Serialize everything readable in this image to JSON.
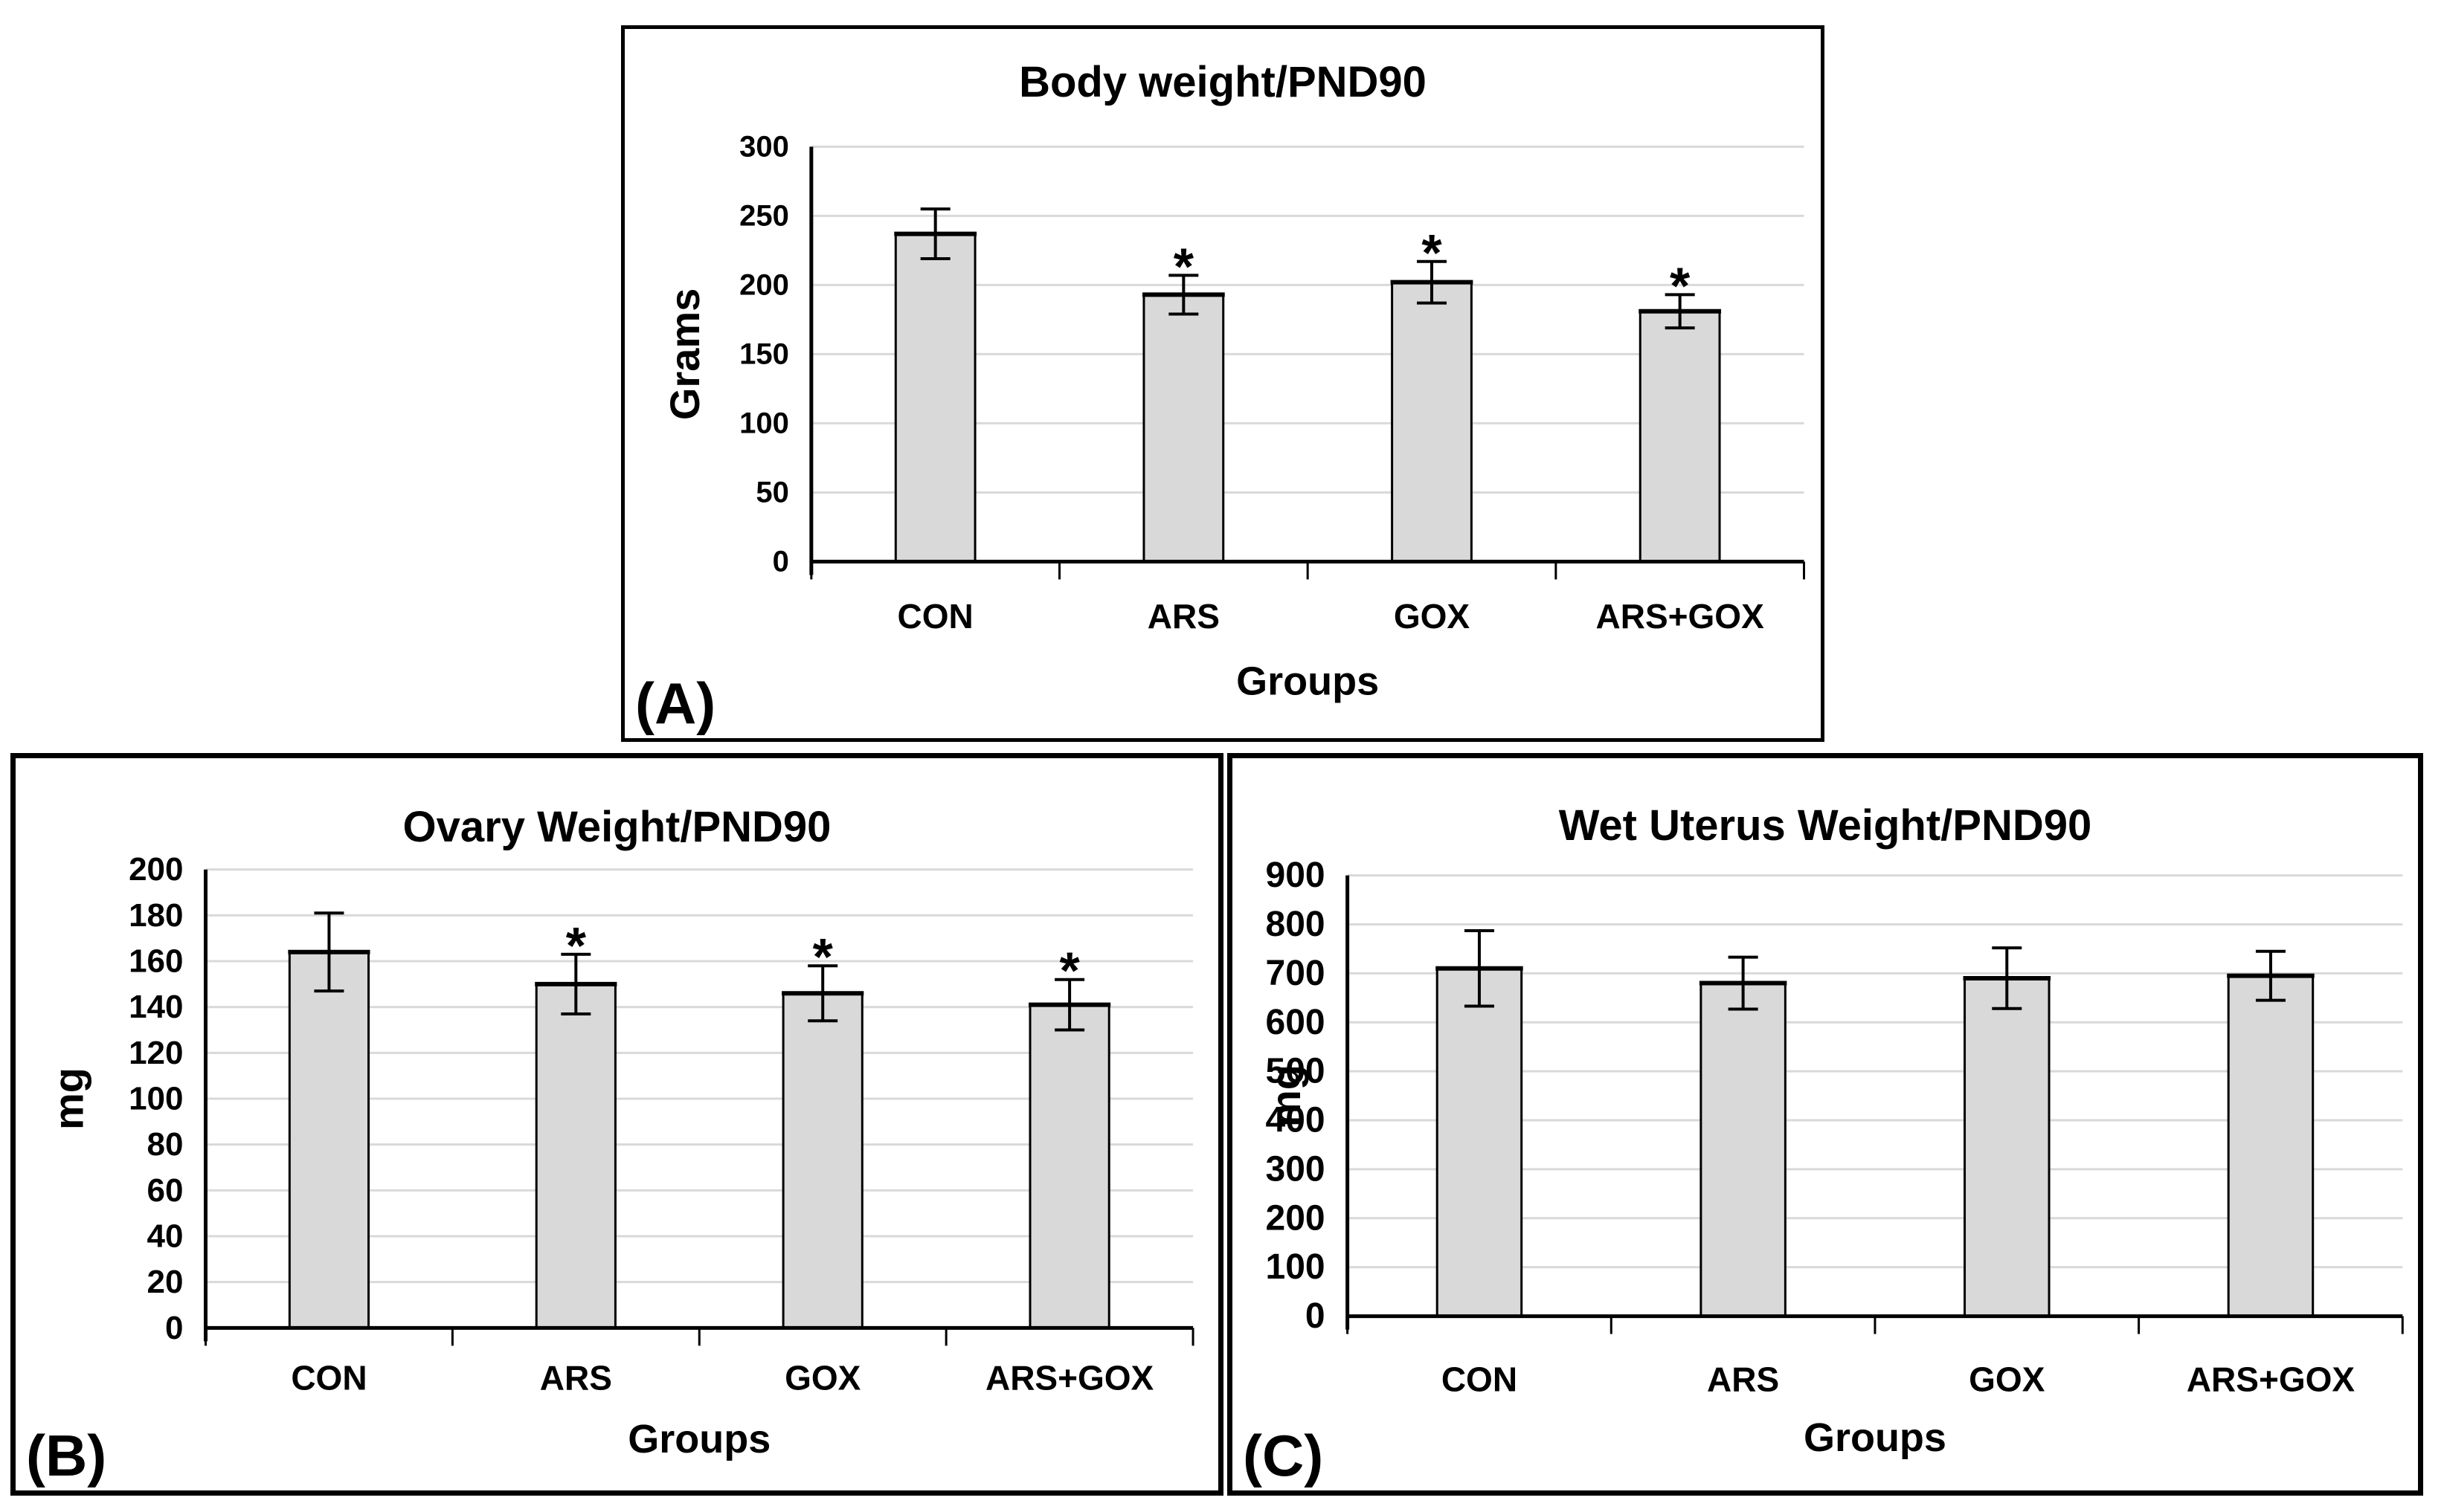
{
  "figure": {
    "background": "#ffffff",
    "panels": [
      {
        "id": "panel-A",
        "label": "(A)",
        "chart_index": 0
      },
      {
        "id": "panel-B",
        "label": "(B)",
        "chart_index": 1
      },
      {
        "id": "panel-C",
        "label": "(C)",
        "chart_index": 2
      }
    ]
  },
  "chart_data": [
    {
      "type": "bar",
      "title": "Body weight/PND90",
      "ylabel": "Grams",
      "xlabel": "Groups",
      "categories": [
        "CON",
        "ARS",
        "GOX",
        "ARS+GOX"
      ],
      "values": [
        237,
        193,
        202,
        181
      ],
      "errors": [
        18,
        14,
        15,
        12
      ],
      "significance": [
        "",
        "*",
        "*",
        "*"
      ],
      "ylim": [
        0,
        300
      ],
      "ystep": 50,
      "yticks": [
        0,
        50,
        100,
        150,
        200,
        250,
        300
      ],
      "grid": true,
      "legend": "none",
      "bar_fill": "#d9d9d9",
      "bar_stroke": "#000000",
      "gridline_color": "#d9d9d9"
    },
    {
      "type": "bar",
      "title": "Ovary Weight/PND90",
      "ylabel": "mg",
      "xlabel": "Groups",
      "categories": [
        "CON",
        "ARS",
        "GOX",
        "ARS+GOX"
      ],
      "values": [
        164,
        150,
        146,
        141
      ],
      "errors": [
        17,
        13,
        12,
        11
      ],
      "significance": [
        "",
        "*",
        "*",
        "*"
      ],
      "ylim": [
        0,
        200
      ],
      "ystep": 20,
      "yticks": [
        0,
        20,
        40,
        60,
        80,
        100,
        120,
        140,
        160,
        180,
        200
      ],
      "grid": true,
      "legend": "none",
      "bar_fill": "#d9d9d9",
      "bar_stroke": "#000000",
      "gridline_color": "#d9d9d9"
    },
    {
      "type": "bar",
      "title": "Wet Uterus Weight/PND90",
      "ylabel": "mg",
      "xlabel": "Groups",
      "categories": [
        "CON",
        "ARS",
        "GOX",
        "ARS+GOX"
      ],
      "values": [
        710,
        680,
        690,
        695
      ],
      "errors": [
        77,
        53,
        62,
        50
      ],
      "significance": [
        "",
        "",
        "",
        ""
      ],
      "ylim": [
        0,
        900
      ],
      "ystep": 100,
      "yticks": [
        0,
        100,
        200,
        300,
        400,
        500,
        600,
        700,
        800,
        900
      ],
      "grid": true,
      "legend": "none",
      "bar_fill": "#d9d9d9",
      "bar_stroke": "#000000",
      "gridline_color": "#d9d9d9"
    }
  ]
}
